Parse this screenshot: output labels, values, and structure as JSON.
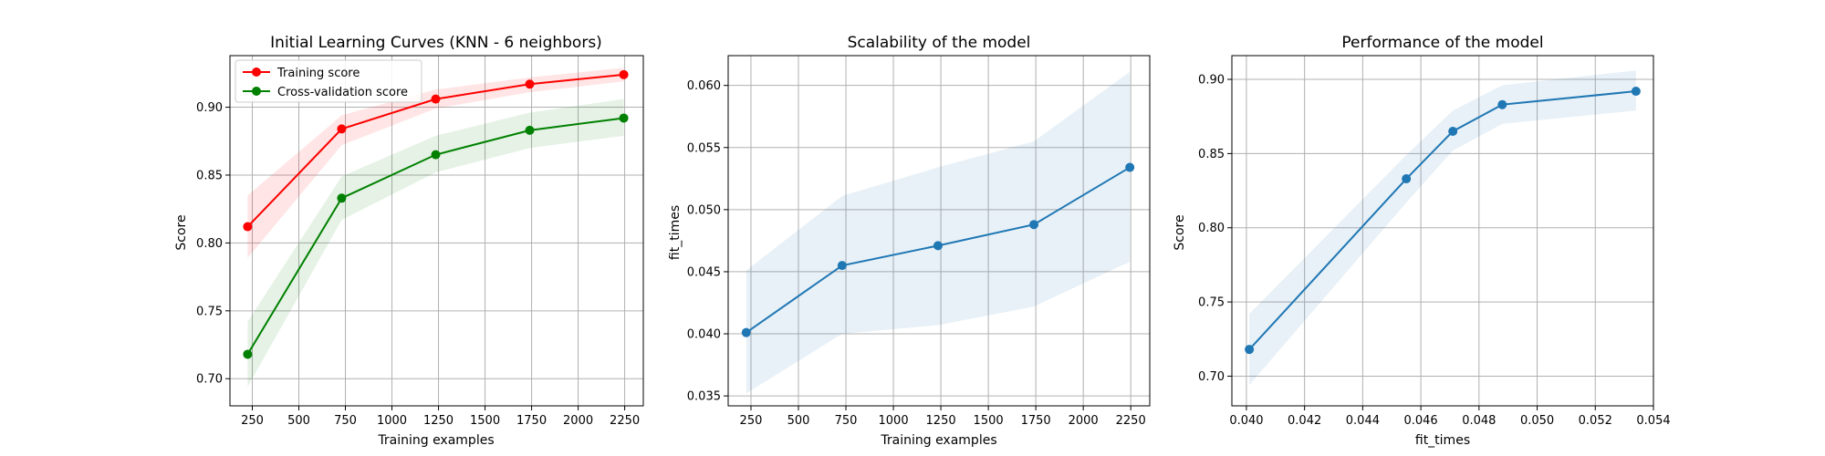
{
  "chart_data": [
    {
      "type": "line",
      "title": "Initial Learning Curves (KNN - 6 neighbors)",
      "xlabel": "Training examples",
      "ylabel": "Score",
      "xlim": [
        130,
        2350
      ],
      "ylim": [
        0.68,
        0.938
      ],
      "xticks": [
        250,
        500,
        750,
        1000,
        1250,
        1500,
        1750,
        2000,
        2250
      ],
      "yticks": [
        0.7,
        0.75,
        0.8,
        0.85,
        0.9
      ],
      "grid": true,
      "legend": "upper-left",
      "series": [
        {
          "name": "Training score",
          "color": "#ff0000",
          "x": [
            225,
            730,
            1235,
            1740,
            2245
          ],
          "y": [
            0.812,
            0.884,
            0.906,
            0.917,
            0.924
          ],
          "band_low": [
            0.789,
            0.872,
            0.899,
            0.911,
            0.919
          ],
          "band_high": [
            0.835,
            0.894,
            0.913,
            0.922,
            0.929
          ]
        },
        {
          "name": "Cross-validation score",
          "color": "#008000",
          "x": [
            225,
            730,
            1235,
            1740,
            2245
          ],
          "y": [
            0.718,
            0.833,
            0.865,
            0.883,
            0.892
          ],
          "band_low": [
            0.694,
            0.817,
            0.852,
            0.87,
            0.879
          ],
          "band_high": [
            0.742,
            0.849,
            0.879,
            0.896,
            0.906
          ]
        }
      ]
    },
    {
      "type": "line",
      "title": "Scalability of the model",
      "xlabel": "Training examples",
      "ylabel": "fit_times",
      "xlim": [
        130,
        2350
      ],
      "ylim": [
        0.0342,
        0.0624
      ],
      "xticks": [
        250,
        500,
        750,
        1000,
        1250,
        1500,
        1750,
        2000,
        2250
      ],
      "yticks": [
        0.035,
        0.04,
        0.045,
        0.05,
        0.055,
        0.06
      ],
      "grid": true,
      "series": [
        {
          "color": "#1f77b4",
          "x": [
            225,
            730,
            1235,
            1740,
            2245
          ],
          "y": [
            0.0401,
            0.0455,
            0.0471,
            0.0488,
            0.0534
          ],
          "band_low": [
            0.0352,
            0.04,
            0.0407,
            0.0422,
            0.0458
          ],
          "band_high": [
            0.0451,
            0.0511,
            0.0534,
            0.0555,
            0.0611
          ]
        }
      ]
    },
    {
      "type": "line",
      "title": "Performance of the model",
      "xlabel": "fit_times",
      "ylabel": "Score",
      "xlim": [
        0.0395,
        0.054
      ],
      "ylim": [
        0.68,
        0.916
      ],
      "xticks": [
        0.04,
        0.042,
        0.044,
        0.046,
        0.048,
        0.05,
        0.052,
        0.054
      ],
      "yticks": [
        0.7,
        0.75,
        0.8,
        0.85,
        0.9
      ],
      "grid": true,
      "series": [
        {
          "color": "#1f77b4",
          "x": [
            0.0401,
            0.0455,
            0.0471,
            0.0488,
            0.0534
          ],
          "y": [
            0.718,
            0.833,
            0.865,
            0.883,
            0.892
          ],
          "band_low": [
            0.694,
            0.817,
            0.852,
            0.87,
            0.879
          ],
          "band_high": [
            0.742,
            0.849,
            0.879,
            0.896,
            0.906
          ]
        }
      ]
    }
  ]
}
